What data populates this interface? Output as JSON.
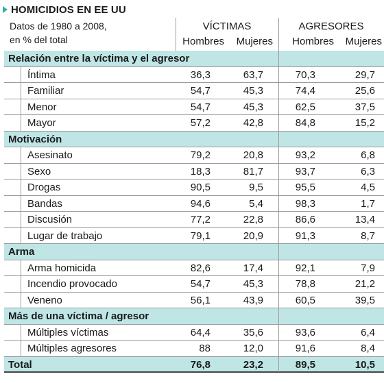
{
  "header": {
    "title": "HOMICIDIOS EN EE UU",
    "subtitle_line1": "Datos de 1980 a 2008,",
    "subtitle_line2": "en % del total",
    "group_victims": "VÍCTIMAS",
    "group_aggressors": "AGRESORES",
    "col_men": "Hombres",
    "col_women": "Mujeres"
  },
  "colors": {
    "accent": "#2bb0ad",
    "section_bg": "#bfe6e5"
  },
  "sections": [
    {
      "title": "Relación entre la víctima y el agresor",
      "rows": [
        {
          "label": "Íntima",
          "v_h": "36,3",
          "v_m": "63,7",
          "a_h": "70,3",
          "a_m": "29,7"
        },
        {
          "label": "Familiar",
          "v_h": "54,7",
          "v_m": "45,3",
          "a_h": "74,4",
          "a_m": "25,6"
        },
        {
          "label": "Menor",
          "v_h": "54,7",
          "v_m": "45,3",
          "a_h": "62,5",
          "a_m": "37,5"
        },
        {
          "label": "Mayor",
          "v_h": "57,2",
          "v_m": "42,8",
          "a_h": "84,8",
          "a_m": "15,2"
        }
      ]
    },
    {
      "title": "Motivación",
      "rows": [
        {
          "label": "Asesinato",
          "v_h": "79,2",
          "v_m": "20,8",
          "a_h": "93,2",
          "a_m": "6,8"
        },
        {
          "label": "Sexo",
          "v_h": "18,3",
          "v_m": "81,7",
          "a_h": "93,7",
          "a_m": "6,3"
        },
        {
          "label": "Drogas",
          "v_h": "90,5",
          "v_m": "9,5",
          "a_h": "95,5",
          "a_m": "4,5"
        },
        {
          "label": "Bandas",
          "v_h": "94,6",
          "v_m": "5,4",
          "a_h": "98,3",
          "a_m": "1,7"
        },
        {
          "label": "Discusión",
          "v_h": "77,2",
          "v_m": "22,8",
          "a_h": "86,6",
          "a_m": "13,4"
        },
        {
          "label": "Lugar de trabajo",
          "v_h": "79,1",
          "v_m": "20,9",
          "a_h": "91,3",
          "a_m": "8,7"
        }
      ]
    },
    {
      "title": "Arma",
      "rows": [
        {
          "label": "Arma homicida",
          "v_h": "82,6",
          "v_m": "17,4",
          "a_h": "92,1",
          "a_m": "7,9"
        },
        {
          "label": "Incendio provocado",
          "v_h": "54,7",
          "v_m": "45,3",
          "a_h": "78,8",
          "a_m": "21,2"
        },
        {
          "label": "Veneno",
          "v_h": "56,1",
          "v_m": "43,9",
          "a_h": "60,5",
          "a_m": "39,5"
        }
      ]
    },
    {
      "title": "Más de una víctima / agresor",
      "rows": [
        {
          "label": "Múltiples víctimas",
          "v_h": "64,4",
          "v_m": "35,6",
          "a_h": "93,6",
          "a_m": "6,4"
        },
        {
          "label": "Múltiples agresores",
          "v_h": "88",
          "v_m": "12,0",
          "a_h": "91,6",
          "a_m": "8,4"
        }
      ]
    }
  ],
  "total": {
    "label": "Total",
    "v_h": "76,8",
    "v_m": "23,2",
    "a_h": "89,5",
    "a_m": "10,5"
  }
}
